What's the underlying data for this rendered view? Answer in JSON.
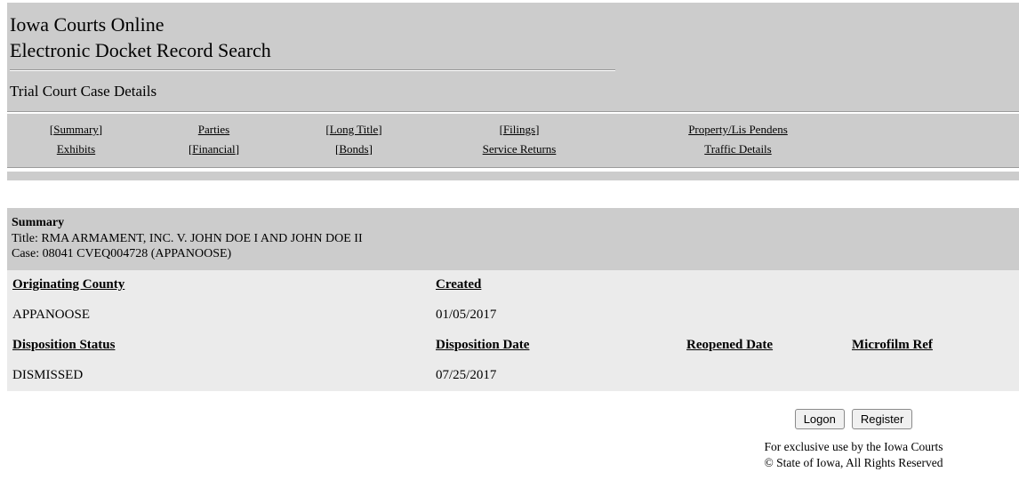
{
  "header": {
    "title_line1": "Iowa Courts Online",
    "title_line2": "Electronic Docket Record Search",
    "subtitle": "Trial Court Case Details"
  },
  "nav": {
    "row1": [
      {
        "pre": "[",
        "label": "Summary",
        "post": "]"
      },
      {
        "pre": "",
        "label": "Parties",
        "post": ""
      },
      {
        "pre": "[",
        "label": "Long Title",
        "post": "]"
      },
      {
        "pre": "[",
        "label": "Filings",
        "post": "]"
      },
      {
        "pre": "",
        "label": "Property/Lis Pendens",
        "post": ""
      }
    ],
    "row2": [
      {
        "pre": "",
        "label": "Exhibits",
        "post": ""
      },
      {
        "pre": "[",
        "label": "Financial",
        "post": "]"
      },
      {
        "pre": "[",
        "label": "Bonds",
        "post": "]"
      },
      {
        "pre": "",
        "label": "Service Returns",
        "post": ""
      },
      {
        "pre": "",
        "label": "Traffic Details",
        "post": ""
      }
    ]
  },
  "summary": {
    "heading": "Summary",
    "title_line": "Title: RMA ARMAMENT, INC. V. JOHN DOE I AND JOHN DOE II",
    "case_line": "Case: 08041 CVEQ004728 (APPANOOSE)"
  },
  "details": {
    "rows": [
      {
        "type": "header",
        "cells": [
          "Originating County",
          "Created",
          "",
          ""
        ]
      },
      {
        "type": "value",
        "cells": [
          "APPANOOSE",
          "01/05/2017",
          "",
          ""
        ]
      },
      {
        "type": "header",
        "cells": [
          "Disposition Status",
          "Disposition Date",
          "Reopened Date",
          "Microfilm Ref"
        ]
      },
      {
        "type": "value",
        "cells": [
          "DISMISSED",
          "07/25/2017",
          "",
          ""
        ]
      }
    ]
  },
  "actions": {
    "logon": "Logon",
    "register": "Register"
  },
  "footer": {
    "line1": "For exclusive use by the Iowa Courts",
    "line2": "© State of Iowa,  All Rights Reserved"
  },
  "colors": {
    "band_gray": "#cccccc",
    "details_gray": "#ebebeb",
    "link_color": "#000000",
    "button_bg": "#f0f0f0",
    "button_border": "#8a8a8a"
  }
}
